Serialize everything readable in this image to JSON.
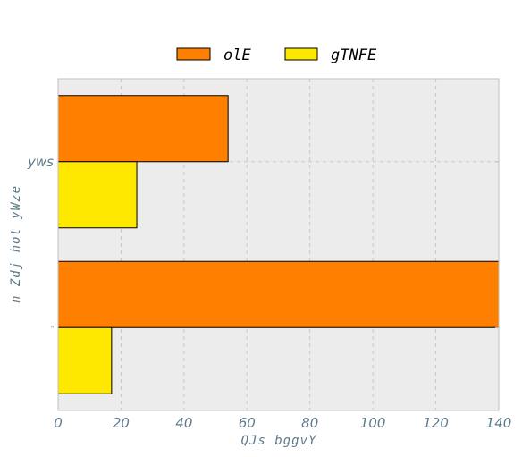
{
  "chart_data": {
    "type": "bar",
    "orientation": "horizontal",
    "categories": [
      "yws",
      "ᴺ"
    ],
    "series": [
      {
        "name": "olE",
        "color": "#ff7f00",
        "values": [
          54,
          140
        ]
      },
      {
        "name": "gTNFE",
        "color": "#ffe800",
        "values": [
          25,
          17
        ]
      }
    ],
    "xlabel": "QJs bggvY",
    "ylabel": "n Zdj hot yWze",
    "xlim": [
      0,
      140
    ],
    "xticks": [
      0,
      20,
      40,
      60,
      80,
      100,
      120,
      140
    ],
    "grid": true,
    "legend_position": "top-center",
    "background": "#ececec"
  }
}
